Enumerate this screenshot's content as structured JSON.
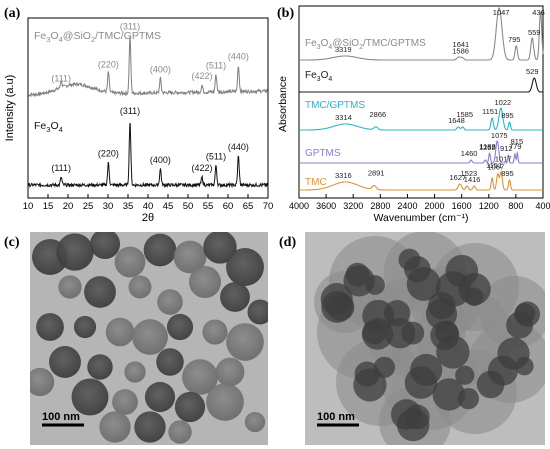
{
  "panels": {
    "a": "(a)",
    "b": "(b)",
    "c": "(c)",
    "d": "(d)"
  },
  "scale_bars": {
    "c": "100 nm",
    "d": "100 nm"
  },
  "chart_data": [
    {
      "type": "line",
      "xlabel": "2θ",
      "ylabel": "Intensity (a.u)",
      "xlim": [
        10,
        70
      ],
      "xticks": [
        "10",
        "15",
        "20",
        "25",
        "30",
        "35",
        "40",
        "45",
        "50",
        "55",
        "60",
        "65",
        "70"
      ],
      "grid": false,
      "colors": {
        "top": "#7f7f7f",
        "bottom": "#111111"
      },
      "series": [
        {
          "name": "Fe3O4@SiO2/TMC/GPTMS",
          "peaks": [
            {
              "x": 18.3,
              "label": "(111)"
            },
            {
              "x": 30.1,
              "label": "(220)"
            },
            {
              "x": 35.5,
              "label": "(311)"
            },
            {
              "x": 43.1,
              "label": "(400)"
            },
            {
              "x": 53.5,
              "label": "(422)"
            },
            {
              "x": 57.0,
              "label": "(511)"
            },
            {
              "x": 62.6,
              "label": "(440)"
            }
          ]
        },
        {
          "name": "Fe3O4",
          "peaks": [
            {
              "x": 18.3,
              "label": "(111)"
            },
            {
              "x": 30.1,
              "label": "(220)"
            },
            {
              "x": 35.5,
              "label": "(311)"
            },
            {
              "x": 43.1,
              "label": "(400)"
            },
            {
              "x": 53.5,
              "label": "(422)"
            },
            {
              "x": 57.0,
              "label": "(511)"
            },
            {
              "x": 62.6,
              "label": "(440)"
            }
          ]
        }
      ]
    },
    {
      "type": "line",
      "xlabel": "Wavenumber (cm⁻¹)",
      "ylabel": "Absorbance",
      "xlim": [
        4000,
        400
      ],
      "xticks": [
        "4000",
        "3600",
        "3200",
        "2800",
        "2400",
        "2000",
        "1600",
        "1200",
        "800",
        "400"
      ],
      "grid": false,
      "series": [
        {
          "name": "Fe3O4@SiO2/TMC/GPTMS",
          "color": "#8a8a8a",
          "bands": [
            "3319",
            "1641",
            "1586",
            "1047",
            "795",
            "559",
            "436"
          ]
        },
        {
          "name": "Fe3O4",
          "color": "#1a1a1a",
          "bands": [
            "529"
          ]
        },
        {
          "name": "TMC/GPTMS",
          "color": "#2cb5c8",
          "bands": [
            "3314",
            "2866",
            "1648",
            "1585",
            "1151",
            "1022",
            "895"
          ]
        },
        {
          "name": "GPTMS",
          "color": "#8a7fcf",
          "bands": [
            "1460",
            "1252",
            "1188",
            "1075",
            "912",
            "815",
            "779"
          ]
        },
        {
          "name": "TMC",
          "color": "#d9953a",
          "bands": [
            "3316",
            "2891",
            "1627",
            "1523",
            "1416",
            "1151",
            "1067",
            "1017",
            "895"
          ]
        }
      ]
    }
  ]
}
